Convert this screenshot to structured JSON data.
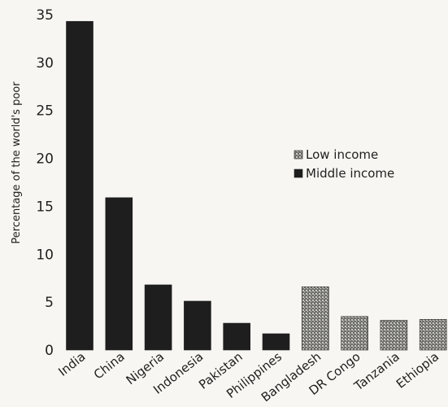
{
  "chart_data": {
    "type": "bar",
    "title": "",
    "xlabel": "",
    "ylabel": "Percentage of the world's poor",
    "ylim": [
      0,
      35
    ],
    "yticks": [
      0,
      5,
      10,
      15,
      20,
      25,
      30,
      35
    ],
    "grid": false,
    "legend_position": "right-middle",
    "categories": [
      "India",
      "China",
      "Nigeria",
      "Indonesia",
      "Pakistan",
      "Philippines",
      "Bangladesh",
      "DR Congo",
      "Tanzania",
      "Ethiopia"
    ],
    "values": [
      34.3,
      15.9,
      6.8,
      5.1,
      2.8,
      1.7,
      6.6,
      3.5,
      3.1,
      3.2
    ],
    "income_group": [
      "middle",
      "middle",
      "middle",
      "middle",
      "middle",
      "middle",
      "low",
      "low",
      "low",
      "low"
    ],
    "series": [
      {
        "key": "low",
        "name": "Low income",
        "color": "#7a7a78"
      },
      {
        "key": "middle",
        "name": "Middle income",
        "color": "#1e1e1e"
      }
    ]
  }
}
